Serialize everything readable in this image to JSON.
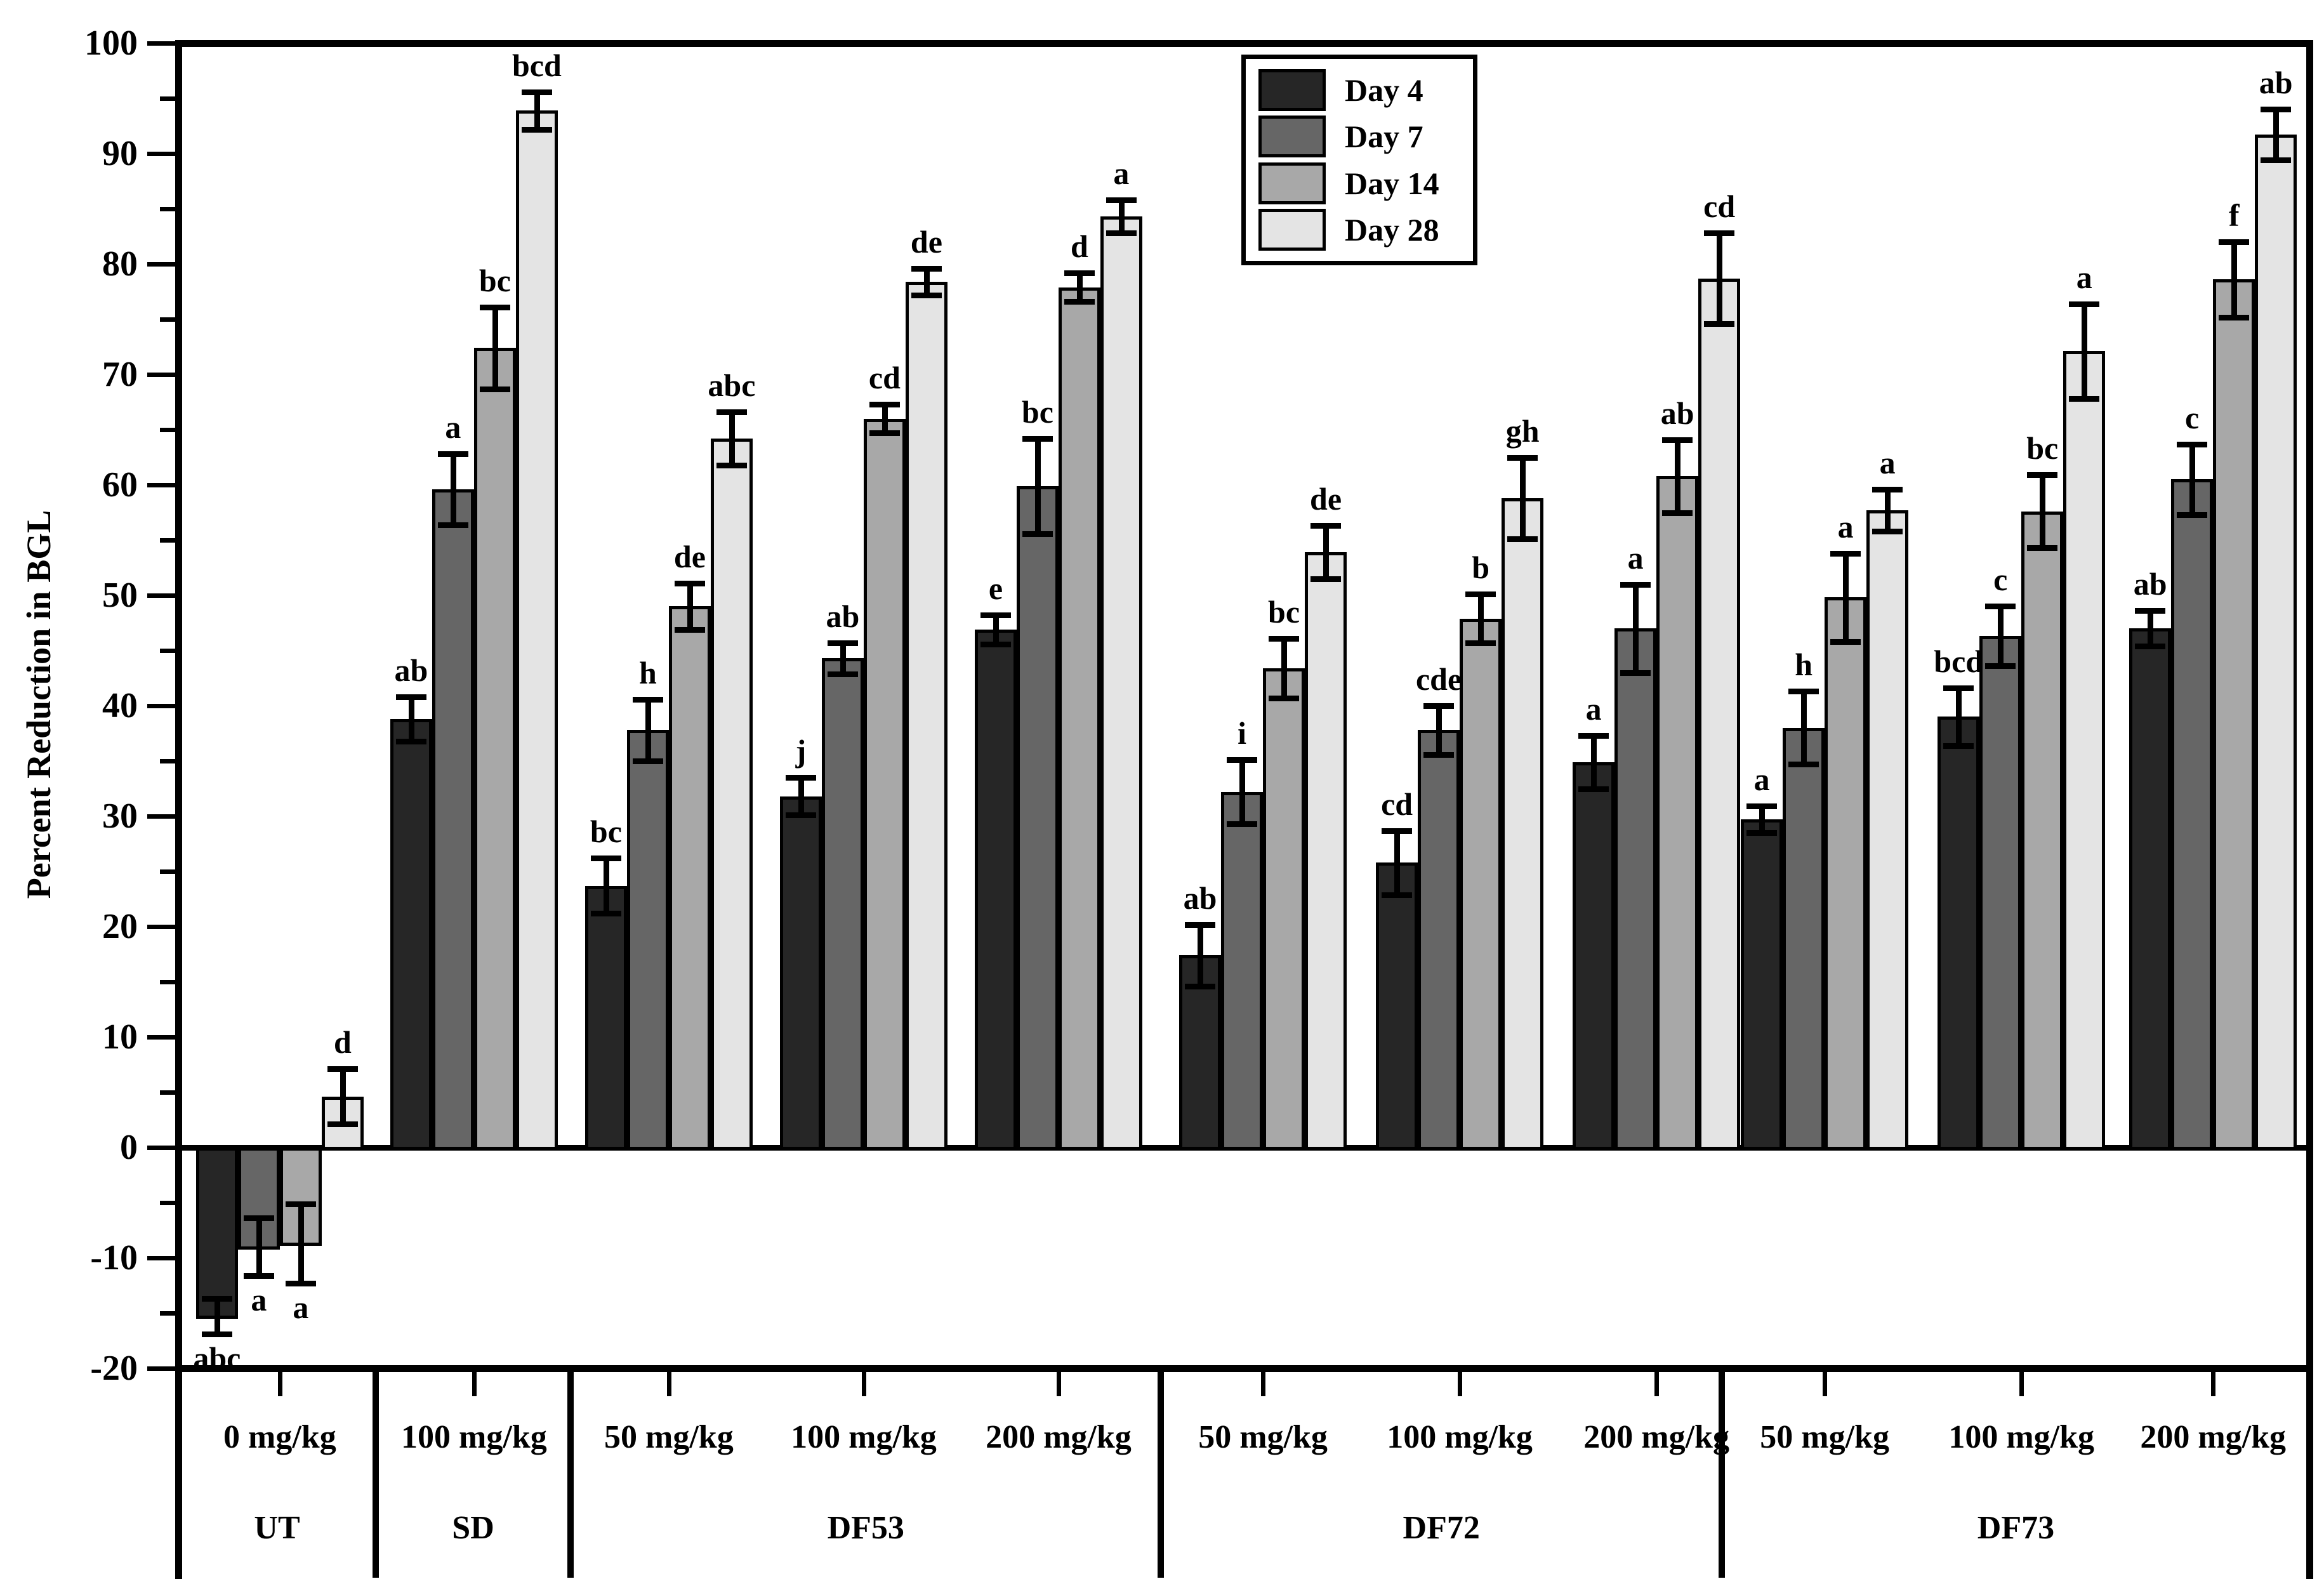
{
  "figure": {
    "ylabel": "Percent Reduction in BGL"
  },
  "legend": {
    "items": [
      {
        "label": "Day 4",
        "color": "#262626"
      },
      {
        "label": "Day 7",
        "color": "#666666"
      },
      {
        "label": "Day 14",
        "color": "#a8a8a8"
      },
      {
        "label": "Day 28",
        "color": "#e4e4e4"
      }
    ]
  },
  "chart_data": {
    "type": "bar",
    "title": "",
    "xlabel": "",
    "ylabel": "Percent Reduction in BGL",
    "ylim": [
      -20,
      100
    ],
    "ytick_major_step": 10,
    "ytick_minor_step": 5,
    "grid": false,
    "legend_position": "top-center",
    "error_bars": true,
    "series": [
      "Day 4",
      "Day 7",
      "Day 14",
      "Day 28"
    ],
    "series_colors": [
      "#262626",
      "#666666",
      "#a8a8a8",
      "#e4e4e4"
    ],
    "sections": [
      {
        "name": "UT",
        "doses": [
          "0 mg/kg"
        ]
      },
      {
        "name": "SD",
        "doses": [
          "100 mg/kg"
        ]
      },
      {
        "name": "DF53",
        "doses": [
          "50 mg/kg",
          "100 mg/kg",
          "200 mg/kg"
        ]
      },
      {
        "name": "DF72",
        "doses": [
          "50 mg/kg",
          "100 mg/kg",
          "200 mg/kg"
        ]
      },
      {
        "name": "DF73",
        "doses": [
          "50 mg/kg",
          "100 mg/kg",
          "200 mg/kg"
        ]
      }
    ],
    "groups": [
      {
        "section": "UT",
        "dose": "0 mg/kg",
        "values": [
          -15.3,
          -9.0,
          -8.7,
          4.6
        ],
        "errors": [
          1.6,
          2.6,
          3.6,
          2.5
        ],
        "letters": [
          "abc",
          "a",
          "a",
          "d"
        ]
      },
      {
        "section": "SD",
        "dose": "100 mg/kg",
        "values": [
          38.8,
          59.6,
          72.4,
          93.9
        ],
        "errors": [
          2.0,
          3.2,
          3.7,
          1.7
        ],
        "letters": [
          "ab",
          "a",
          "bc",
          "bcd"
        ]
      },
      {
        "section": "DF53",
        "dose": "50 mg/kg",
        "values": [
          23.7,
          37.8,
          49.0,
          64.2
        ],
        "errors": [
          2.5,
          2.8,
          2.1,
          2.4
        ],
        "letters": [
          "bc",
          "h",
          "de",
          "abc"
        ]
      },
      {
        "section": "DF53",
        "dose": "100 mg/kg",
        "values": [
          31.8,
          44.3,
          66.0,
          78.4
        ],
        "errors": [
          1.7,
          1.4,
          1.3,
          1.2
        ],
        "letters": [
          "j",
          "ab",
          "cd",
          "de"
        ]
      },
      {
        "section": "DF53",
        "dose": "200 mg/kg",
        "values": [
          46.9,
          59.9,
          77.9,
          84.3
        ],
        "errors": [
          1.3,
          4.3,
          1.3,
          1.5
        ],
        "letters": [
          "e",
          "bc",
          "d",
          "a"
        ]
      },
      {
        "section": "DF72",
        "dose": "50 mg/kg",
        "values": [
          17.4,
          32.2,
          43.4,
          53.9
        ],
        "errors": [
          2.8,
          2.9,
          2.7,
          2.4
        ],
        "letters": [
          "ab",
          "i",
          "bc",
          "de"
        ]
      },
      {
        "section": "DF72",
        "dose": "100 mg/kg",
        "values": [
          25.8,
          37.8,
          47.9,
          58.8
        ],
        "errors": [
          2.9,
          2.2,
          2.2,
          3.7
        ],
        "letters": [
          "cd",
          "cde",
          "b",
          "gh"
        ]
      },
      {
        "section": "DF72",
        "dose": "200 mg/kg",
        "values": [
          34.9,
          47.0,
          60.8,
          78.7
        ],
        "errors": [
          2.4,
          4.0,
          3.3,
          4.1
        ],
        "letters": [
          "a",
          "a",
          "ab",
          "cd"
        ]
      },
      {
        "section": "DF73",
        "dose": "50 mg/kg",
        "values": [
          29.7,
          38.0,
          49.8,
          57.7
        ],
        "errors": [
          1.2,
          3.3,
          4.0,
          1.9
        ],
        "letters": [
          "a",
          "h",
          "a",
          "a"
        ]
      },
      {
        "section": "DF73",
        "dose": "100 mg/kg",
        "values": [
          39.0,
          46.3,
          57.6,
          72.1
        ],
        "errors": [
          2.6,
          2.7,
          3.3,
          4.3
        ],
        "letters": [
          "bcd",
          "c",
          "bc",
          "a"
        ]
      },
      {
        "section": "DF73",
        "dose": "200 mg/kg",
        "values": [
          47.0,
          60.5,
          78.6,
          91.7
        ],
        "errors": [
          1.6,
          3.2,
          3.4,
          2.3
        ],
        "letters": [
          "ab",
          "c",
          "f",
          "ab"
        ]
      }
    ]
  }
}
